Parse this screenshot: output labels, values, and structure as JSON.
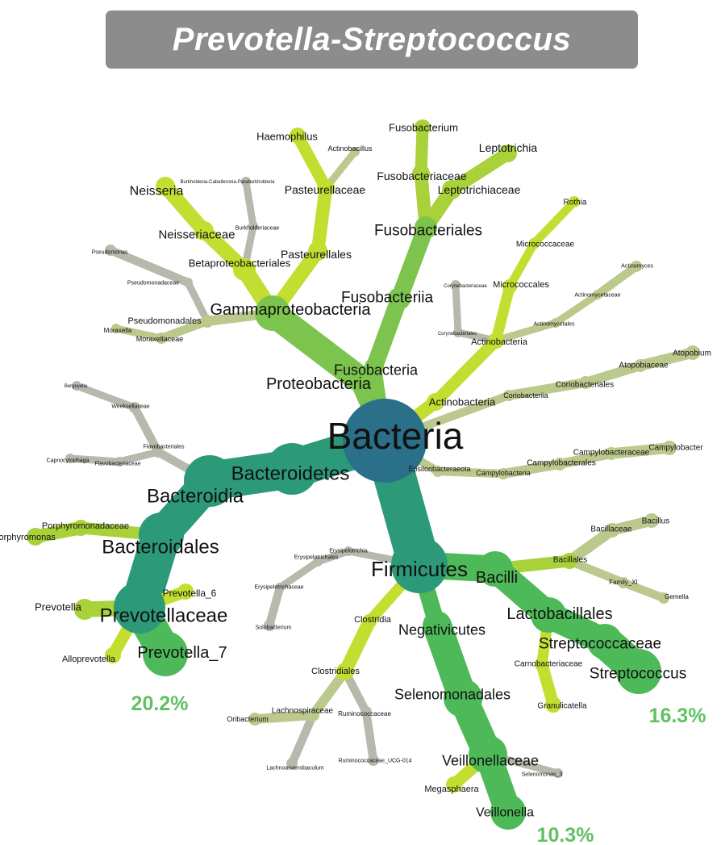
{
  "title": "Prevotella-Streptococcus",
  "colors": {
    "root": "#2a7089",
    "teal": "#2c9a78",
    "green": "#4eb958",
    "mid_green": "#7cc44e",
    "lime": "#a8d13a",
    "yellow_green": "#c3de31",
    "olive": "#bcc98d",
    "gray": "#b8b8ad",
    "percent": "#62c162"
  },
  "percents": {
    "prevotella": "20.2%",
    "streptococcus": "16.3%",
    "veillonella": "10.3%"
  },
  "nodes": [
    {
      "id": "bacteria",
      "label": "Bacteria",
      "parent": null,
      "c": "root"
    },
    {
      "id": "proteobacteria",
      "label": "Proteobacteria",
      "parent": "bacteria",
      "c": "mid_green"
    },
    {
      "id": "gammaproteobacteria",
      "label": "Gammaproteobacteria",
      "parent": "proteobacteria",
      "c": "mid_green"
    },
    {
      "id": "pasteurellales",
      "label": "Pasteurellales",
      "parent": "gammaproteobacteria",
      "c": "yellow_green"
    },
    {
      "id": "pasteurellaceae",
      "label": "Pasteurellaceae",
      "parent": "pasteurellales",
      "c": "yellow_green"
    },
    {
      "id": "haemophilus",
      "label": "Haemophilus",
      "parent": "pasteurellaceae",
      "c": "yellow_green"
    },
    {
      "id": "actinobacillus",
      "label": "Actinobacillus",
      "parent": "pasteurellaceae",
      "c": "olive"
    },
    {
      "id": "betaproteobacteriales",
      "label": "Betaproteobacteriales",
      "parent": "gammaproteobacteria",
      "c": "yellow_green"
    },
    {
      "id": "neisseriaceae",
      "label": "Neisseriaceae",
      "parent": "betaproteobacteriales",
      "c": "yellow_green"
    },
    {
      "id": "neisseria",
      "label": "Neisseria",
      "parent": "neisseriaceae",
      "c": "yellow_green"
    },
    {
      "id": "burkholderiaceae",
      "label": "Burkholderiaceae",
      "parent": "betaproteobacteriales",
      "c": "gray"
    },
    {
      "id": "burkholderia",
      "label": "Burkholderia-Caballeronia-Paraburkholderia",
      "parent": "burkholderiaceae",
      "c": "gray"
    },
    {
      "id": "pseudomonadales",
      "label": "Pseudomonadales",
      "parent": "gammaproteobacteria",
      "c": "olive"
    },
    {
      "id": "pseudomonadaceae",
      "label": "Pseudomonadaceae",
      "parent": "pseudomonadales",
      "c": "gray"
    },
    {
      "id": "pseudomonas",
      "label": "Pseudomonas",
      "parent": "pseudomonadaceae",
      "c": "gray"
    },
    {
      "id": "moraxellaceae",
      "label": "Moraxellaceae",
      "parent": "pseudomonadales",
      "c": "olive"
    },
    {
      "id": "moraxella",
      "label": "Moraxella",
      "parent": "moraxellaceae",
      "c": "olive"
    },
    {
      "id": "fusobacteria",
      "label": "Fusobacteria",
      "parent": "bacteria",
      "c": "mid_green"
    },
    {
      "id": "fusobacteriia",
      "label": "Fusobacteriia",
      "parent": "fusobacteria",
      "c": "mid_green"
    },
    {
      "id": "fusobacteriales",
      "label": "Fusobacteriales",
      "parent": "fusobacteriia",
      "c": "mid_green"
    },
    {
      "id": "fusobacteriaceae",
      "label": "Fusobacteriaceae",
      "parent": "fusobacteriales",
      "c": "lime"
    },
    {
      "id": "fusobacterium",
      "label": "Fusobacterium",
      "parent": "fusobacteriaceae",
      "c": "lime"
    },
    {
      "id": "leptotrichiaceae",
      "label": "Leptotrichiaceae",
      "parent": "fusobacteriales",
      "c": "lime"
    },
    {
      "id": "leptotrichia",
      "label": "Leptotrichia",
      "parent": "leptotrichiaceae",
      "c": "lime"
    },
    {
      "id": "actinobacteria",
      "label": "Actinobacteria",
      "parent": "bacteria",
      "c": "yellow_green"
    },
    {
      "id": "actinobacteria_c",
      "label": "Actinobacteria",
      "parent": "actinobacteria",
      "c": "yellow_green"
    },
    {
      "id": "micrococcales",
      "label": "Micrococcales",
      "parent": "actinobacteria_c",
      "c": "yellow_green"
    },
    {
      "id": "micrococcaceae",
      "label": "Micrococcaceae",
      "parent": "micrococcales",
      "c": "yellow_green"
    },
    {
      "id": "rothia",
      "label": "Rothia",
      "parent": "micrococcaceae",
      "c": "yellow_green"
    },
    {
      "id": "corynebacteriales",
      "label": "Corynebacteriales",
      "parent": "actinobacteria_c",
      "c": "gray"
    },
    {
      "id": "corynebacteriaceae",
      "label": "Corynebacteriaceae",
      "parent": "corynebacteriales",
      "c": "gray"
    },
    {
      "id": "actinomycetales",
      "label": "Actinomycetales",
      "parent": "actinobacteria_c",
      "c": "olive"
    },
    {
      "id": "actinomycetaceae",
      "label": "Actinomycetaceae",
      "parent": "actinomycetales",
      "c": "olive"
    },
    {
      "id": "actinomyces",
      "label": "Actinomyces",
      "parent": "actinomycetaceae",
      "c": "olive"
    },
    {
      "id": "coriobacteriia",
      "label": "Coriobacteriia",
      "parent": "bacteria",
      "c": "olive"
    },
    {
      "id": "coriobacteriales",
      "label": "Coriobacteriales",
      "parent": "coriobacteriia",
      "c": "olive"
    },
    {
      "id": "atopobiaceae",
      "label": "Atopobiaceae",
      "parent": "coriobacteriales",
      "c": "olive"
    },
    {
      "id": "atopobium",
      "label": "Atopobium",
      "parent": "atopobiaceae",
      "c": "olive"
    },
    {
      "id": "epsilonbacteraeota",
      "label": "Epsilonbacteraeota",
      "parent": "bacteria",
      "c": "olive"
    },
    {
      "id": "campylobacteria",
      "label": "Campylobacteria",
      "parent": "epsilonbacteraeota",
      "c": "olive"
    },
    {
      "id": "campylobacterales",
      "label": "Campylobacterales",
      "parent": "campylobacteria",
      "c": "olive"
    },
    {
      "id": "campylobacteraceae",
      "label": "Campylobacteraceae",
      "parent": "campylobacterales",
      "c": "olive"
    },
    {
      "id": "campylobacter",
      "label": "Campylobacter",
      "parent": "campylobacteraceae",
      "c": "olive"
    },
    {
      "id": "bacteroidetes",
      "label": "Bacteroidetes",
      "parent": "bacteria",
      "c": "teal"
    },
    {
      "id": "bacteroidia",
      "label": "Bacteroidia",
      "parent": "bacteroidetes",
      "c": "teal"
    },
    {
      "id": "flavobacteriales",
      "label": "Flavobacteriales",
      "parent": "bacteroidia",
      "c": "gray"
    },
    {
      "id": "flavobacteriaceae",
      "label": "Flavobacteriaceae",
      "parent": "flavobacteriales",
      "c": "gray"
    },
    {
      "id": "capnocytophaga",
      "label": "Capnocytophaga",
      "parent": "flavobacteriaceae",
      "c": "gray"
    },
    {
      "id": "weeksellaceae",
      "label": "Weeksellaceae",
      "parent": "flavobacteriales",
      "c": "gray"
    },
    {
      "id": "bergeyella",
      "label": "Bergeyella",
      "parent": "weeksellaceae",
      "c": "gray"
    },
    {
      "id": "bacteroidales",
      "label": "Bacteroidales",
      "parent": "bacteroidia",
      "c": "teal"
    },
    {
      "id": "porphyromonadaceae",
      "label": "Porphyromonadaceae",
      "parent": "bacteroidales",
      "c": "lime"
    },
    {
      "id": "porphyromonas",
      "label": "Porphyromonas",
      "parent": "porphyromonadaceae",
      "c": "lime"
    },
    {
      "id": "prevotellaceae",
      "label": "Prevotellaceae",
      "parent": "bacteroidales",
      "c": "teal"
    },
    {
      "id": "prevotella_6",
      "label": "Prevotella_6",
      "parent": "prevotellaceae",
      "c": "yellow_green"
    },
    {
      "id": "prevotella",
      "label": "Prevotella",
      "parent": "prevotellaceae",
      "c": "lime"
    },
    {
      "id": "alloprevotella",
      "label": "Alloprevotella",
      "parent": "prevotellaceae",
      "c": "yellow_green"
    },
    {
      "id": "prevotella_7",
      "label": "Prevotella_7",
      "parent": "prevotellaceae",
      "c": "green"
    },
    {
      "id": "firmicutes",
      "label": "Firmicutes",
      "parent": "bacteria",
      "c": "teal"
    },
    {
      "id": "erysipelotrichia",
      "label": "Erysipelotrichia",
      "parent": "firmicutes",
      "c": "gray"
    },
    {
      "id": "erysipelotrichales",
      "label": "Erysipelotrichales",
      "parent": "erysipelotrichia",
      "c": "gray"
    },
    {
      "id": "erysipelotrichaceae",
      "label": "Erysipelotrichaceae",
      "parent": "erysipelotrichales",
      "c": "gray"
    },
    {
      "id": "solobacterium",
      "label": "Solobacterium",
      "parent": "erysipelotrichaceae",
      "c": "gray"
    },
    {
      "id": "bacilli",
      "label": "Bacilli",
      "parent": "firmicutes",
      "c": "green"
    },
    {
      "id": "bacillales",
      "label": "Bacillales",
      "parent": "bacilli",
      "c": "lime"
    },
    {
      "id": "bacillaceae",
      "label": "Bacillaceae",
      "parent": "bacillales",
      "c": "olive"
    },
    {
      "id": "bacillus",
      "label": "Bacillus",
      "parent": "bacillaceae",
      "c": "olive"
    },
    {
      "id": "family_xi",
      "label": "Family_XI",
      "parent": "bacillales",
      "c": "olive"
    },
    {
      "id": "gemella",
      "label": "Gemella",
      "parent": "family_xi",
      "c": "olive"
    },
    {
      "id": "lactobacillales",
      "label": "Lactobacillales",
      "parent": "bacilli",
      "c": "green"
    },
    {
      "id": "streptococcaceae",
      "label": "Streptococcaceae",
      "parent": "lactobacillales",
      "c": "green"
    },
    {
      "id": "streptococcus",
      "label": "Streptococcus",
      "parent": "streptococcaceae",
      "c": "green"
    },
    {
      "id": "carnobacteriaceae",
      "label": "Carnobacteriaceae",
      "parent": "lactobacillales",
      "c": "yellow_green"
    },
    {
      "id": "granulicatella",
      "label": "Granulicatella",
      "parent": "carnobacteriaceae",
      "c": "yellow_green"
    },
    {
      "id": "negativicutes",
      "label": "Negativicutes",
      "parent": "firmicutes",
      "c": "green"
    },
    {
      "id": "selenomonadales",
      "label": "Selenomonadales",
      "parent": "negativicutes",
      "c": "green"
    },
    {
      "id": "veillonellaceae",
      "label": "Veillonellaceae",
      "parent": "selenomonadales",
      "c": "green"
    },
    {
      "id": "veillonella",
      "label": "Veillonella",
      "parent": "veillonellaceae",
      "c": "green"
    },
    {
      "id": "megasphaera",
      "label": "Megasphaera",
      "parent": "veillonellaceae",
      "c": "yellow_green"
    },
    {
      "id": "selenomonas_3",
      "label": "Selenomonas_3",
      "parent": "veillonellaceae",
      "c": "gray"
    },
    {
      "id": "clostridia",
      "label": "Clostridia",
      "parent": "firmicutes",
      "c": "yellow_green"
    },
    {
      "id": "clostridiales",
      "label": "Clostridiales",
      "parent": "clostridia",
      "c": "yellow_green"
    },
    {
      "id": "lachnospiraceae",
      "label": "Lachnospiraceae",
      "parent": "clostridiales",
      "c": "olive"
    },
    {
      "id": "oribacterium",
      "label": "Oribacterium",
      "parent": "lachnospiraceae",
      "c": "olive"
    },
    {
      "id": "lachnoanaerobaculum",
      "label": "Lachnoanaerobaculum",
      "parent": "lachnospiraceae",
      "c": "gray"
    },
    {
      "id": "ruminococcaceae",
      "label": "Ruminococcaceae",
      "parent": "clostridiales",
      "c": "gray"
    },
    {
      "id": "ruminococcaceae_ucg_014",
      "label": "Ruminococcaceae_UCG-014",
      "parent": "ruminococcaceae",
      "c": "gray"
    }
  ]
}
